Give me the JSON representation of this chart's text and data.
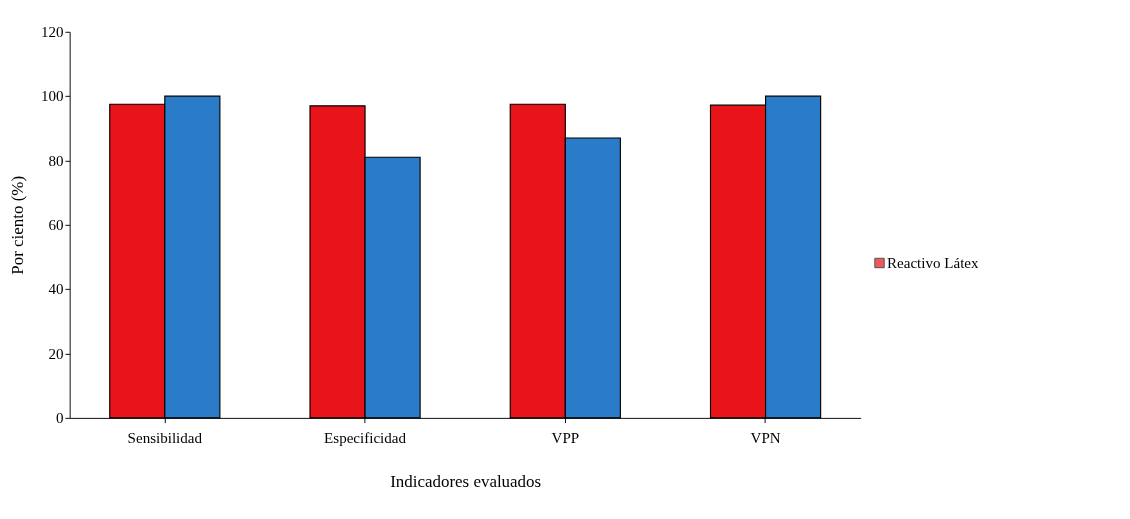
{
  "chart_data": {
    "type": "bar",
    "xlabel": "Indicadores evaluados",
    "ylabel": "Por ciento (%)",
    "categories": [
      "Sensibilidad",
      "Especificidad",
      "VPP",
      "VPN"
    ],
    "series": [
      {
        "name": "Reactivo Látex",
        "color": "#e8141a",
        "values": [
          97.5,
          97.0,
          97.5,
          97.2
        ]
      },
      {
        "color": "#2a7bc8",
        "values": [
          100,
          81,
          87,
          100
        ]
      }
    ],
    "ylim": [
      0,
      120
    ],
    "yticks": [
      0,
      20,
      40,
      60,
      80,
      100,
      120
    ],
    "grid": false,
    "legend": "right"
  }
}
